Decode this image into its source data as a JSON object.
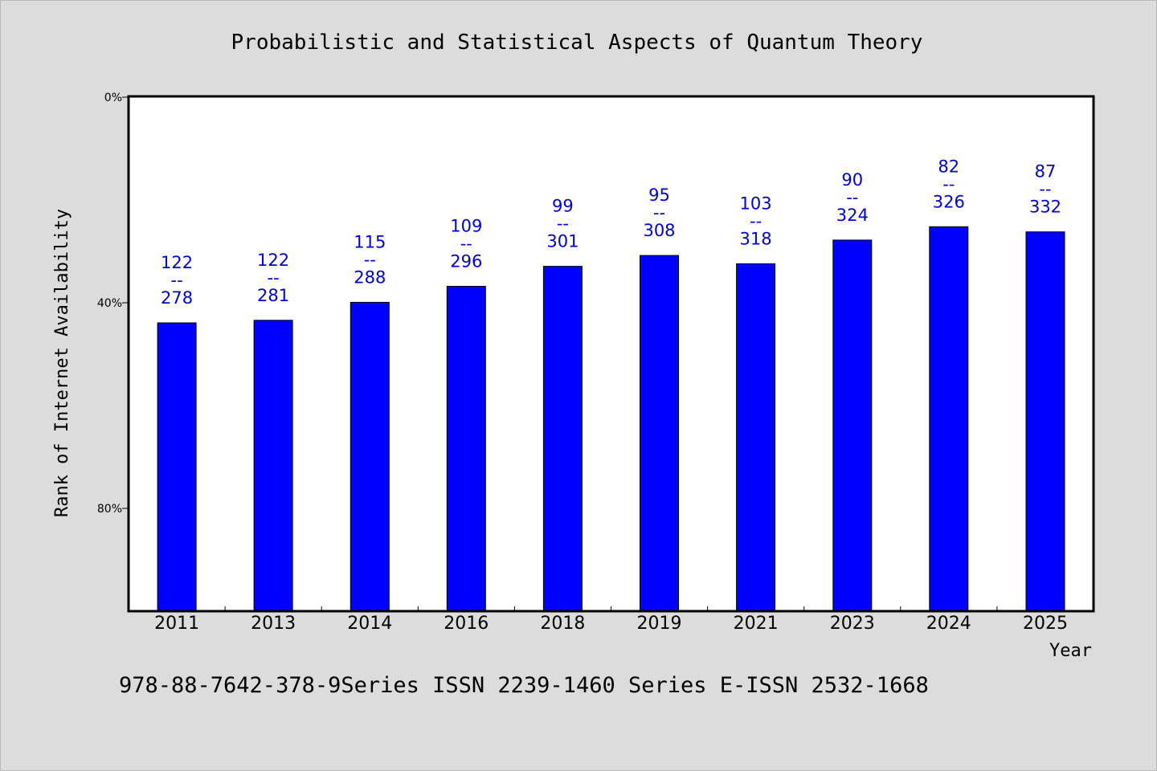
{
  "chart_data": {
    "type": "bar",
    "title": "Probabilistic and Statistical Aspects of Quantum Theory",
    "xlabel": "Year",
    "ylabel": "Rank of Internet Availability",
    "categories": [
      "2011",
      "2013",
      "2014",
      "2016",
      "2018",
      "2019",
      "2021",
      "2023",
      "2024",
      "2025"
    ],
    "values": [
      43.9,
      43.4,
      39.9,
      36.8,
      32.9,
      30.8,
      32.4,
      27.8,
      25.2,
      26.2
    ],
    "numerators": [
      "122",
      "122",
      "115",
      "109",
      "99",
      "95",
      "103",
      "90",
      "82",
      "87"
    ],
    "denominators": [
      "278",
      "281",
      "288",
      "296",
      "301",
      "308",
      "318",
      "324",
      "326",
      "332"
    ],
    "fraction_bar": "--",
    "ylim": [
      0,
      100
    ],
    "y_inverted": true,
    "yticks": [
      {
        "value": 0,
        "label": "0%"
      },
      {
        "value": 40,
        "label": "40%"
      },
      {
        "value": 80,
        "label": "80%"
      }
    ],
    "bar_color": "#0000ff",
    "label_color": "#0000c8",
    "grid": false,
    "legend": "none"
  },
  "footer": {
    "text": "978-88-7642-378-9Series ISSN 2239-1460 Series E-ISSN 2532-1668"
  }
}
